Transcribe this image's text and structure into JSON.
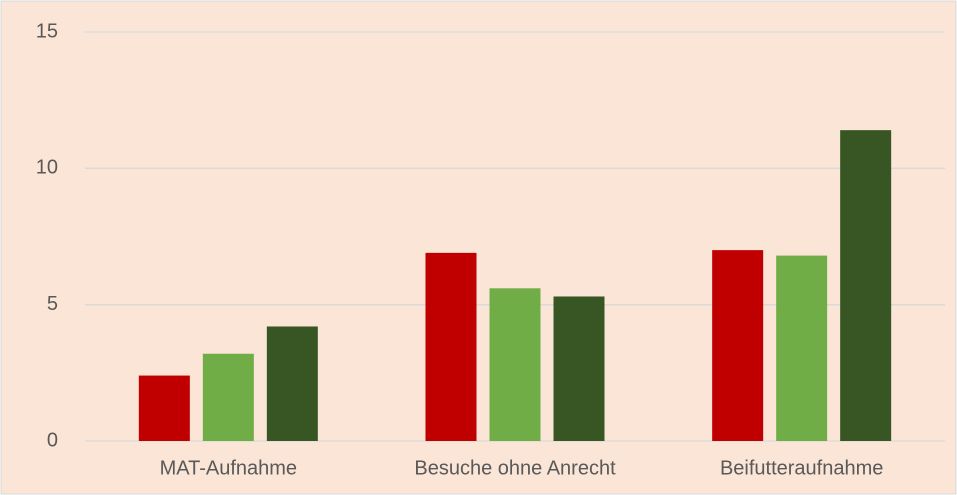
{
  "chart_data": {
    "type": "bar",
    "categories": [
      "MAT-Aufnahme",
      "Besuche ohne Anrecht",
      "Beifutteraufnahme"
    ],
    "series": [
      {
        "color": "#c00000",
        "values": [
          2.4,
          6.9,
          7.0
        ]
      },
      {
        "color": "#70ad47",
        "values": [
          3.2,
          5.6,
          6.8
        ]
      },
      {
        "color": "#375623",
        "values": [
          4.2,
          5.3,
          11.4
        ]
      }
    ],
    "ylim": [
      0,
      15
    ],
    "yticks": [
      0,
      5,
      10,
      15
    ],
    "grid": true
  }
}
